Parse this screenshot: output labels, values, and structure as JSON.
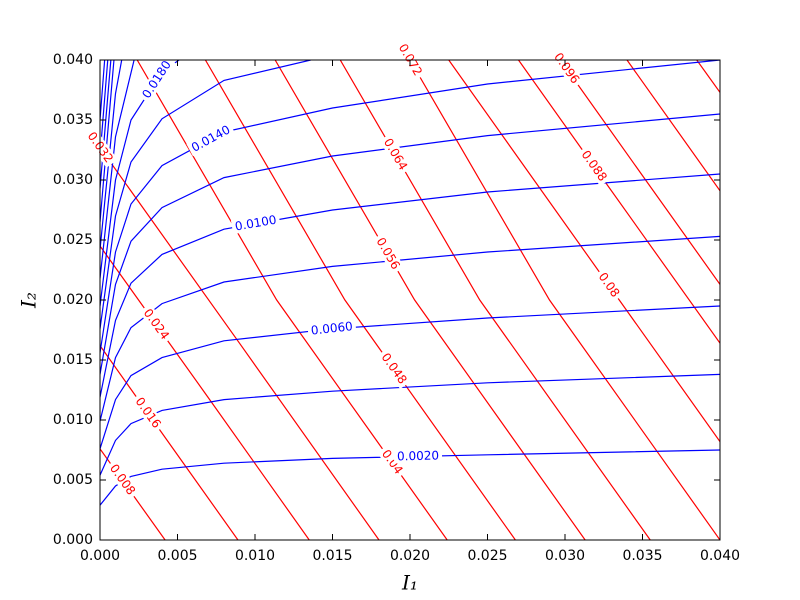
{
  "chart_data": {
    "type": "contour",
    "x_label": "I₁",
    "y_label": "I₂",
    "xlim": [
      0,
      0.04
    ],
    "ylim": [
      0,
      0.04
    ],
    "xticks": [
      {
        "value": 0,
        "label": "0.000"
      },
      {
        "value": 0.005,
        "label": "0.005"
      },
      {
        "value": 0.01,
        "label": "0.010"
      },
      {
        "value": 0.015,
        "label": "0.015"
      },
      {
        "value": 0.02,
        "label": "0.020"
      },
      {
        "value": 0.025,
        "label": "0.025"
      },
      {
        "value": 0.03,
        "label": "0.030"
      },
      {
        "value": 0.035,
        "label": "0.035"
      },
      {
        "value": 0.04,
        "label": "0.040"
      }
    ],
    "yticks": [
      {
        "value": 0,
        "label": "0.000"
      },
      {
        "value": 0.005,
        "label": "0.005"
      },
      {
        "value": 0.01,
        "label": "0.010"
      },
      {
        "value": 0.015,
        "label": "0.015"
      },
      {
        "value": 0.02,
        "label": "0.020"
      },
      {
        "value": 0.025,
        "label": "0.025"
      },
      {
        "value": 0.03,
        "label": "0.030"
      },
      {
        "value": 0.035,
        "label": "0.035"
      },
      {
        "value": 0.04,
        "label": "0.040"
      }
    ],
    "contour_sets": [
      {
        "color": "#ff0000",
        "contours": [
          {
            "level": 0.008,
            "x": [
              0.0042,
              0.0021,
              0
            ],
            "y": [
              0,
              0.0038,
              0.0076
            ]
          },
          {
            "level": 0.016,
            "x": [
              0.0089,
              0.0045,
              0
            ],
            "y": [
              0,
              0.008,
              0.0162
            ]
          },
          {
            "level": 0.024,
            "x": [
              0.0135,
              0.0068,
              0
            ],
            "y": [
              0,
              0.0122,
              0.0245
            ]
          },
          {
            "level": 0.032,
            "x": [
              0.018,
              0.009,
              0
            ],
            "y": [
              0,
              0.0164,
              0.0327
            ]
          },
          {
            "level": 0.04,
            "x": [
              0.0224,
              0.0114,
              0.0024
            ],
            "y": [
              0,
              0.02,
              0.04
            ]
          },
          {
            "level": 0.048,
            "x": [
              0.0268,
              0.0158,
              0.0068
            ],
            "y": [
              0,
              0.02,
              0.04
            ]
          },
          {
            "level": 0.056,
            "x": [
              0.0313,
              0.0203,
              0.0113
            ],
            "y": [
              0,
              0.02,
              0.04
            ]
          },
          {
            "level": 0.064,
            "x": [
              0.0355,
              0.0245,
              0.0155
            ],
            "y": [
              0,
              0.02,
              0.04
            ]
          },
          {
            "level": 0.072,
            "x": [
              0.04,
              0.029,
              0.02
            ],
            "y": [
              0,
              0.02,
              0.04
            ]
          },
          {
            "level": 0.08,
            "x": [
              0.04,
              0.0335,
              0.0225
            ],
            "y": [
              0.0082,
              0.02,
              0.04
            ]
          },
          {
            "level": 0.088,
            "x": [
              0.04,
              0.0325,
              0.027
            ],
            "y": [
              0.0164,
              0.03,
              0.04
            ]
          },
          {
            "level": 0.096,
            "x": [
              0.04,
              0.0352,
              0.0297
            ],
            "y": [
              0.0213,
              0.03,
              0.04
            ]
          },
          {
            "level": 0.104,
            "x": [
              0.04,
              0.034
            ],
            "y": [
              0.0291,
              0.04
            ]
          },
          {
            "level": 0.112,
            "x": [
              0.04,
              0.0385
            ],
            "y": [
              0.0373,
              0.04
            ]
          }
        ]
      },
      {
        "color": "#0000ff",
        "contours": [
          {
            "level": 0.002,
            "level_label": "0.0020",
            "x": [
              0,
              0.001,
              0.002,
              0.004,
              0.008,
              0.015,
              0.025,
              0.04
            ],
            "y": [
              0.0029,
              0.0045,
              0.0053,
              0.0059,
              0.0064,
              0.0068,
              0.0071,
              0.0075
            ]
          },
          {
            "level": 0.004,
            "x": [
              0,
              0.001,
              0.002,
              0.004,
              0.008,
              0.015,
              0.025,
              0.04
            ],
            "y": [
              0.0054,
              0.0083,
              0.0097,
              0.0108,
              0.0117,
              0.0124,
              0.0131,
              0.0138
            ]
          },
          {
            "level": 0.006,
            "level_label": "0.0060",
            "x": [
              0,
              0.001,
              0.002,
              0.004,
              0.008,
              0.015,
              0.025,
              0.04
            ],
            "y": [
              0.0076,
              0.0117,
              0.0137,
              0.0152,
              0.0166,
              0.0176,
              0.0185,
              0.0195
            ]
          },
          {
            "level": 0.008,
            "x": [
              0,
              0.001,
              0.002,
              0.004,
              0.008,
              0.015,
              0.025,
              0.04
            ],
            "y": [
              0.0099,
              0.0152,
              0.0177,
              0.0197,
              0.0215,
              0.0228,
              0.024,
              0.0253
            ]
          },
          {
            "level": 0.01,
            "level_label": "0.0100",
            "x": [
              0,
              0.001,
              0.002,
              0.004,
              0.008,
              0.015,
              0.025,
              0.04
            ],
            "y": [
              0.0119,
              0.0183,
              0.0214,
              0.0238,
              0.0259,
              0.0275,
              0.029,
              0.0305
            ]
          },
          {
            "level": 0.012,
            "x": [
              0,
              0.001,
              0.002,
              0.004,
              0.008,
              0.015,
              0.025,
              0.04
            ],
            "y": [
              0.0138,
              0.0213,
              0.0249,
              0.0277,
              0.0302,
              0.032,
              0.0337,
              0.0355
            ]
          },
          {
            "level": 0.014,
            "level_label": "0.0140",
            "x": [
              0,
              0.001,
              0.002,
              0.004,
              0.008,
              0.015,
              0.025,
              0.04
            ],
            "y": [
              0.0156,
              0.024,
              0.028,
              0.0312,
              0.034,
              0.036,
              0.038,
              0.04
            ]
          },
          {
            "level": 0.016,
            "x": [
              0,
              0.001,
              0.002,
              0.004,
              0.008,
              0.0136
            ],
            "y": [
              0.0176,
              0.027,
              0.0315,
              0.0351,
              0.0383,
              0.04
            ]
          },
          {
            "level": 0.018,
            "level_label": "0.0180",
            "x": [
              0,
              0.001,
              0.002,
              0.004,
              0.0051
            ],
            "y": [
              0.0195,
              0.03,
              0.035,
              0.039,
              0.04
            ]
          },
          {
            "level": 0.02,
            "x": [
              0,
              0.001,
              0.0022
            ],
            "y": [
              0.0218,
              0.0336,
              0.04
            ]
          },
          {
            "level": 0.022,
            "x": [
              0,
              0.001,
              0.0014
            ],
            "y": [
              0.0242,
              0.0372,
              0.04
            ]
          },
          {
            "level": 0.024,
            "x": [
              0,
              0.0009
            ],
            "y": [
              0.0265,
              0.04
            ]
          },
          {
            "level": 0.026,
            "x": [
              0,
              0.0007
            ],
            "y": [
              0.0293,
              0.04
            ]
          },
          {
            "level": 0.028,
            "x": [
              0,
              0.0005
            ],
            "y": [
              0.032,
              0.04
            ]
          },
          {
            "level": 0.03,
            "x": [
              0,
              0.0003
            ],
            "y": [
              0.035,
              0.04
            ]
          }
        ]
      }
    ]
  }
}
